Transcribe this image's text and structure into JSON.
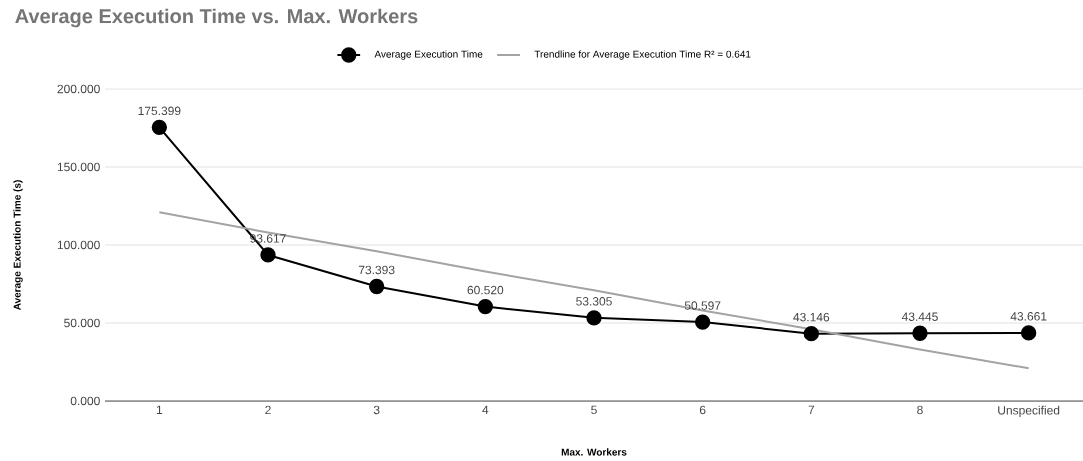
{
  "chart_data": {
    "type": "line",
    "title": "Average Execution Time vs. Max. Workers",
    "xlabel": "Max. Workers",
    "ylabel": "Average Execution Time (s)",
    "categories": [
      "1",
      "2",
      "3",
      "4",
      "5",
      "6",
      "7",
      "8",
      "Unspecified"
    ],
    "series": [
      {
        "name": "Average Execution Time",
        "color": "#000000",
        "values": [
          175.399,
          93.617,
          73.393,
          60.52,
          53.305,
          50.597,
          43.146,
          43.445,
          43.661
        ],
        "value_labels": [
          "175.399",
          "93.617",
          "73.393",
          "60.520",
          "53.305",
          "50.597",
          "43.146",
          "43.445",
          "43.661"
        ],
        "marker": "circle"
      },
      {
        "name": "Trendline for Average Execution Time R² = 0.641",
        "color": "#a3a3a3",
        "type": "line",
        "values": [
          121,
          108,
          96,
          83,
          71,
          58,
          46,
          33,
          21
        ],
        "marker": "none"
      }
    ],
    "ylim": [
      0,
      200
    ],
    "yticks": [
      {
        "value": 0,
        "label": "0.000"
      },
      {
        "value": 50,
        "label": "50.000"
      },
      {
        "value": 100,
        "label": "100.000"
      },
      {
        "value": 150,
        "label": "150.000"
      },
      {
        "value": 200,
        "label": "200.000"
      }
    ],
    "grid": "y",
    "legend": "top"
  }
}
